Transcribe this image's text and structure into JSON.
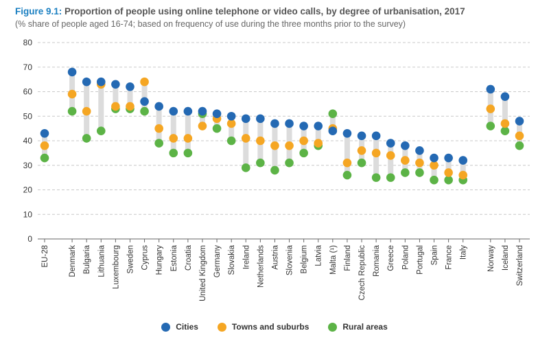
{
  "header": {
    "figure_label": "Figure 9.1:",
    "title": "Proportion of people using online telephone or video calls, by degree of urbanisation, 2017",
    "subtitle": "(% share of people aged 16-74; based on frequency of use during the three months prior to the survey)"
  },
  "colors": {
    "cities": "#2469b3",
    "towns": "#f5a623",
    "rural": "#5cb346",
    "range_bar": "#dcdcdc",
    "grid": "#c8c8c8",
    "axis_text": "#333333"
  },
  "chart_data": {
    "type": "scatter",
    "ylim": [
      0,
      80
    ],
    "yticks": [
      0,
      10,
      20,
      30,
      40,
      50,
      60,
      70,
      80
    ],
    "grid": "horizontal-dashed",
    "legend_position": "bottom",
    "categories": [
      "EU-28",
      "Denmark",
      "Bulgaria",
      "Lithuania",
      "Luxembourg",
      "Sweden",
      "Cyprus",
      "Hungary",
      "Estonia",
      "Croatia",
      "United Kingdom",
      "Germany",
      "Slovakia",
      "Ireland",
      "Netherlands",
      "Austria",
      "Slovenia",
      "Belgium",
      "Latvia",
      "Malta (¹)",
      "Finland",
      "Czech Republic",
      "Romania",
      "Greece",
      "Poland",
      "Portugal",
      "Spain",
      "France",
      "Italy",
      "Norway",
      "Iceland",
      "Switzerland"
    ],
    "group_breaks_after": [
      0,
      28
    ],
    "series": [
      {
        "name": "Cities",
        "key": "cities",
        "values": [
          43,
          68,
          64,
          64,
          63,
          62,
          56,
          54,
          52,
          52,
          52,
          51,
          50,
          49,
          49,
          47,
          47,
          46,
          46,
          44,
          43,
          42,
          42,
          39,
          38,
          36,
          33,
          33,
          32,
          61,
          58,
          48
        ]
      },
      {
        "name": "Towns and suburbs",
        "key": "towns",
        "values": [
          38,
          59,
          52,
          63,
          54,
          54,
          64,
          45,
          41,
          41,
          46,
          49,
          47,
          41,
          40,
          38,
          38,
          40,
          39,
          45,
          31,
          36,
          35,
          34,
          32,
          31,
          30,
          27,
          26,
          53,
          47,
          42
        ]
      },
      {
        "name": "Rural areas",
        "key": "rural",
        "values": [
          33,
          52,
          41,
          44,
          53,
          53,
          52,
          39,
          35,
          35,
          51,
          45,
          40,
          29,
          31,
          28,
          31,
          35,
          38,
          51,
          26,
          31,
          25,
          25,
          27,
          27,
          24,
          24,
          24,
          46,
          44,
          38
        ]
      }
    ]
  }
}
